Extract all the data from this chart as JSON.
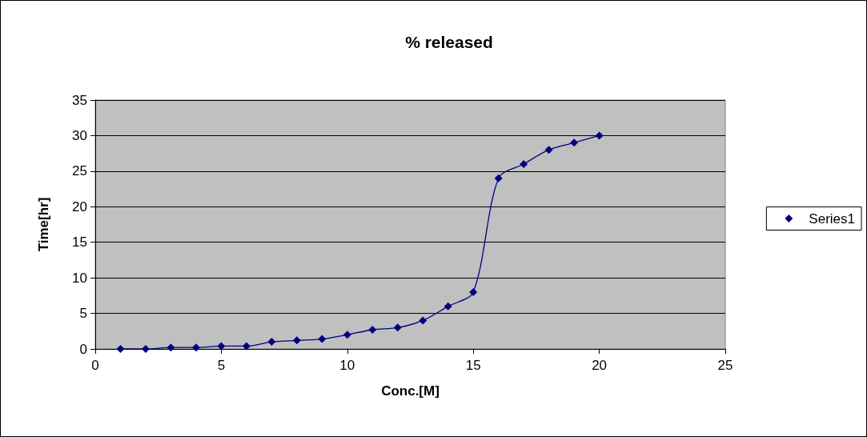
{
  "chart_data": {
    "type": "line",
    "title": "% released",
    "xlabel": "Conc.[M]",
    "ylabel": "Time[hr]",
    "x": [
      1,
      2,
      3,
      4,
      5,
      6,
      7,
      8,
      9,
      10,
      11,
      12,
      13,
      14,
      15,
      16,
      17,
      18,
      19,
      20
    ],
    "series": [
      {
        "name": "Series1",
        "color": "#000080",
        "values": [
          0,
          0,
          0.2,
          0.2,
          0.4,
          0.4,
          1,
          1.2,
          1.4,
          2,
          2.7,
          3,
          4,
          6,
          8,
          24,
          26,
          28,
          29,
          30
        ]
      }
    ],
    "xlim": [
      0,
      25
    ],
    "xticks": [
      0,
      5,
      10,
      15,
      20,
      25
    ],
    "ylim": [
      0,
      35
    ],
    "yticks": [
      0,
      5,
      10,
      15,
      20,
      25,
      30,
      35
    ],
    "grid": "y",
    "legend": "right",
    "marker": "diamond",
    "line_style": "solid"
  }
}
